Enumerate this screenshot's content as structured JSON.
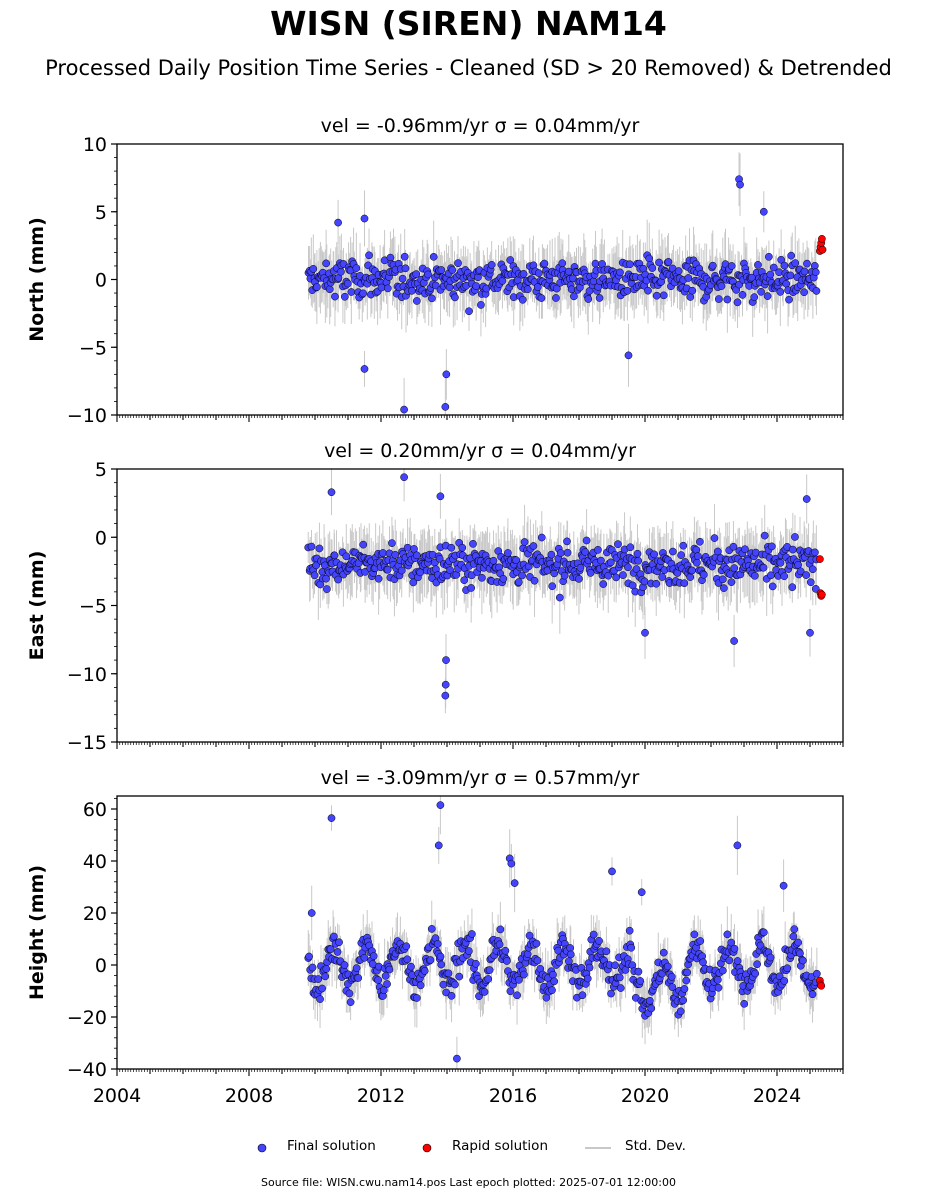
{
  "figure": {
    "title": "WISN (SIREN) NAM14",
    "subtitle": "Processed Daily Position Time Series - Cleaned (SD > 20 Removed) & Detrended",
    "source_note": "Source file: WISN.cwu.nam14.pos  Last epoch plotted: 2025-07-01 12:00:00"
  },
  "legend": {
    "items": [
      {
        "label": "Final solution",
        "color": "#4444ff"
      },
      {
        "label": "Rapid solution",
        "color": "#ff0000"
      },
      {
        "label": "Std. Dev.",
        "color": "#c8c8c8"
      }
    ]
  },
  "colors": {
    "final": "#4444ff",
    "rapid": "#ff0000",
    "stddev": "#c8c8c8",
    "marker_edge": "#000000"
  },
  "chart_data": [
    {
      "type": "scatter",
      "title": "vel = -0.96mm/yr   σ = 0.04mm/yr",
      "ylabel": "North (mm)",
      "xlim": [
        2004.0,
        2026.0
      ],
      "ylim": [
        -10,
        10
      ],
      "yticks": [
        -10,
        -5,
        0,
        5,
        10
      ],
      "ytick_labels": [
        "−10",
        "−5",
        "0",
        "5",
        "10"
      ],
      "xtick_labels_shown": false,
      "data_start": 2009.8,
      "data_end": 2025.2,
      "final_series_summary": {
        "mean": 0.0,
        "typical_scatter": 1.2,
        "outliers": [
          [
            2013.95,
            -9.4
          ],
          [
            2013.98,
            -7.0
          ],
          [
            2012.7,
            -9.6
          ],
          [
            2011.5,
            -6.6
          ],
          [
            2019.5,
            -5.6
          ],
          [
            2022.85,
            7.4
          ],
          [
            2022.88,
            7.0
          ],
          [
            2023.6,
            5.0
          ],
          [
            2011.5,
            4.5
          ],
          [
            2010.7,
            4.2
          ]
        ]
      },
      "rapid_series": {
        "x": [
          2025.3,
          2025.32,
          2025.34,
          2025.36,
          2025.38
        ],
        "y": [
          2.1,
          2.4,
          2.7,
          3.0,
          2.2
        ]
      },
      "grid": false
    },
    {
      "type": "scatter",
      "title": "vel = 0.20mm/yr   σ = 0.04mm/yr",
      "ylabel": "East (mm)",
      "xlim": [
        2004.0,
        2026.0
      ],
      "ylim": [
        -15,
        5
      ],
      "yticks": [
        -15,
        -10,
        -5,
        0,
        5
      ],
      "ytick_labels": [
        "−15",
        "−10",
        "−5",
        "0",
        "5"
      ],
      "xtick_labels_shown": false,
      "data_start": 2009.8,
      "data_end": 2025.2,
      "final_series_summary": {
        "mean": -2.0,
        "typical_scatter": 1.2,
        "outliers": [
          [
            2013.95,
            -11.6
          ],
          [
            2013.96,
            -10.8
          ],
          [
            2013.97,
            -9.0
          ],
          [
            2010.5,
            3.3
          ],
          [
            2012.7,
            4.4
          ],
          [
            2013.8,
            3.0
          ],
          [
            2024.9,
            2.8
          ],
          [
            2025.0,
            -7.0
          ],
          [
            2022.7,
            -7.6
          ],
          [
            2020.0,
            -7.0
          ]
        ]
      },
      "rapid_series": {
        "x": [
          2025.3,
          2025.32,
          2025.34,
          2025.36
        ],
        "y": [
          -1.6,
          -4.1,
          -4.3,
          -4.2
        ]
      },
      "grid": false
    },
    {
      "type": "scatter",
      "title": "vel = -3.09mm/yr   σ = 0.57mm/yr",
      "ylabel": "Height (mm)",
      "xlim": [
        2004.0,
        2026.0
      ],
      "ylim": [
        -40,
        65
      ],
      "yticks": [
        -40,
        -20,
        0,
        20,
        40,
        60
      ],
      "ytick_labels": [
        "−40",
        "−20",
        "0",
        "20",
        "40",
        "60"
      ],
      "xticks": [
        2004,
        2008,
        2012,
        2016,
        2020,
        2024
      ],
      "xtick_labels": [
        "2004",
        "2008",
        "2012",
        "2016",
        "2020",
        "2024"
      ],
      "xtick_labels_shown": true,
      "data_start": 2009.8,
      "data_end": 2025.2,
      "final_series_summary": {
        "seasonal_amplitude": 8.0,
        "typical_scatter": 5.0,
        "outliers": [
          [
            2010.5,
            56.5
          ],
          [
            2013.8,
            61.5
          ],
          [
            2013.75,
            46.0
          ],
          [
            2015.9,
            41.0
          ],
          [
            2015.95,
            39.0
          ],
          [
            2016.05,
            31.5
          ],
          [
            2019.0,
            36.0
          ],
          [
            2019.9,
            28.0
          ],
          [
            2022.8,
            46.0
          ],
          [
            2024.2,
            30.5
          ],
          [
            2014.3,
            -36.0
          ],
          [
            2009.9,
            20.0
          ]
        ]
      },
      "rapid_series": {
        "x": [
          2025.3,
          2025.32,
          2025.34
        ],
        "y": [
          -6.0,
          -7.5,
          -8.0
        ]
      },
      "grid": false
    }
  ]
}
